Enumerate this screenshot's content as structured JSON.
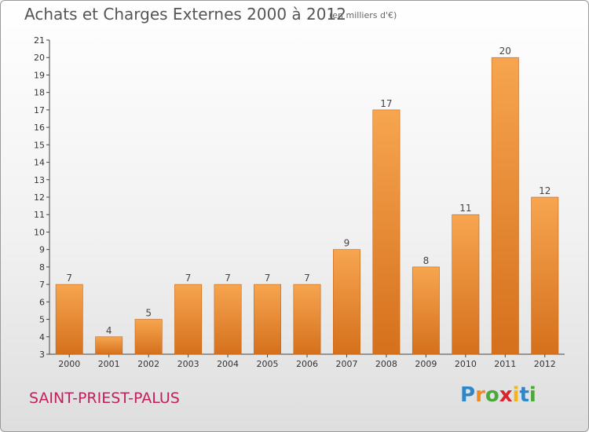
{
  "header": {
    "title": "Achats et Charges Externes 2000 à 2012",
    "subtitle": "(en milliers d'€)"
  },
  "footer": {
    "place": "SAINT-PRIEST-PALUS",
    "logo_letters": [
      "P",
      "r",
      "o",
      "x",
      "i",
      "t",
      "i"
    ],
    "logo_colors": [
      "#2f86c9",
      "#f08a1e",
      "#4aa93a",
      "#d9262e",
      "#f0b41e",
      "#2f86c9",
      "#4aa93a"
    ]
  },
  "chart_data": {
    "type": "bar",
    "title": "Achats et Charges Externes 2000 à 2012",
    "subtitle": "(en milliers d'€)",
    "categories": [
      "2000",
      "2001",
      "2002",
      "2003",
      "2004",
      "2005",
      "2006",
      "2007",
      "2008",
      "2009",
      "2010",
      "2011",
      "2012"
    ],
    "values": [
      7,
      4,
      5,
      7,
      7,
      7,
      7,
      9,
      17,
      8,
      11,
      20,
      12
    ],
    "ylim": [
      3,
      21
    ],
    "yticks": [
      3,
      4,
      5,
      6,
      7,
      8,
      9,
      10,
      11,
      12,
      13,
      14,
      15,
      16,
      17,
      18,
      19,
      20,
      21
    ],
    "grid": false,
    "bar_color": "#f08a30",
    "bar_color_dark": "#d8701c"
  }
}
